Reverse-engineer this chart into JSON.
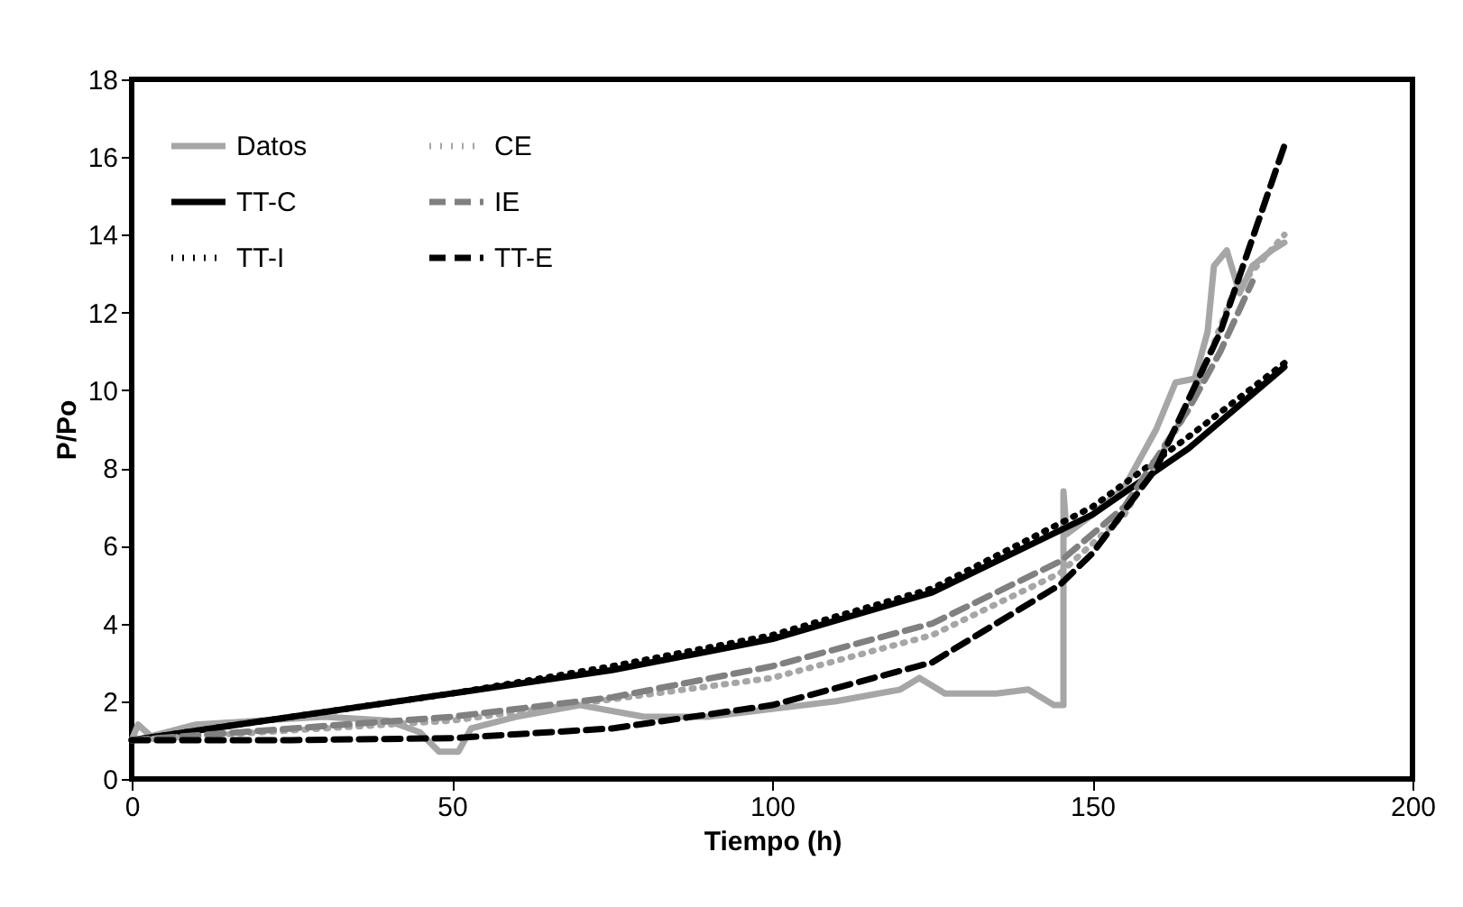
{
  "chart_data": {
    "type": "line",
    "xlabel": "Tiempo (h)",
    "ylabel": "P/Po",
    "xlim": [
      0,
      200
    ],
    "xticks": [
      0,
      50,
      100,
      150,
      200
    ],
    "ylim": [
      0,
      18
    ],
    "yticks": [
      0,
      2,
      4,
      6,
      8,
      10,
      12,
      14,
      16,
      18
    ],
    "grid": false,
    "legend": "top left",
    "marker": "none",
    "series": [
      {
        "name": "Datos",
        "color": "#a6a6a6",
        "line_style": "solid",
        "x": [
          0,
          1,
          3,
          10,
          20,
          30,
          40,
          45,
          48,
          51,
          53,
          60,
          70,
          80,
          90,
          100,
          110,
          120,
          123,
          127,
          135,
          140,
          144,
          145.5,
          145.5,
          146,
          150,
          155,
          160,
          163,
          166,
          168,
          169,
          171,
          173,
          175,
          178,
          180
        ],
        "values": [
          1,
          1.4,
          1.1,
          1.4,
          1.5,
          1.6,
          1.5,
          1.2,
          0.7,
          0.7,
          1.3,
          1.6,
          1.9,
          1.6,
          1.6,
          1.8,
          2.0,
          2.3,
          2.6,
          2.2,
          2.2,
          2.3,
          1.9,
          1.9,
          7.4,
          6.3,
          6.8,
          7.5,
          9.0,
          10.2,
          10.3,
          11.5,
          13.2,
          13.6,
          12.5,
          13.2,
          13.6,
          13.8
        ]
      },
      {
        "name": "TT-C",
        "color": "#000000",
        "line_style": "solid",
        "x": [
          0,
          25,
          50,
          75,
          100,
          125,
          150,
          165,
          180
        ],
        "values": [
          1,
          1.6,
          2.2,
          2.8,
          3.6,
          4.8,
          6.8,
          8.5,
          10.6
        ]
      },
      {
        "name": "TT-I",
        "color": "#000000",
        "line_style": "dotted",
        "x": [
          0,
          25,
          50,
          75,
          100,
          125,
          150,
          165,
          180
        ],
        "values": [
          1,
          1.6,
          2.2,
          2.9,
          3.7,
          4.9,
          7.0,
          8.8,
          10.7
        ]
      },
      {
        "name": "CE",
        "color": "#a6a6a6",
        "line_style": "dotted",
        "x": [
          0,
          50,
          100,
          125,
          145,
          155,
          165,
          172,
          180
        ],
        "values": [
          1,
          1.5,
          2.6,
          3.7,
          5.3,
          6.8,
          9.5,
          12.5,
          14
        ]
      },
      {
        "name": "IE",
        "color": "#808080",
        "line_style": "dashed",
        "x": [
          0,
          25,
          50,
          75,
          100,
          125,
          145,
          155,
          165,
          170,
          175
        ],
        "values": [
          1,
          1.3,
          1.6,
          2.1,
          2.9,
          4.0,
          5.6,
          7.0,
          9.5,
          11,
          12.8
        ]
      },
      {
        "name": "TT-E",
        "color": "#000000",
        "line_style": "dashed",
        "x": [
          0,
          25,
          50,
          75,
          100,
          125,
          145,
          150,
          160,
          170,
          180
        ],
        "values": [
          1,
          1.0,
          1.05,
          1.3,
          1.9,
          3.0,
          5.0,
          5.8,
          8.0,
          11.5,
          16.3
        ]
      }
    ]
  }
}
